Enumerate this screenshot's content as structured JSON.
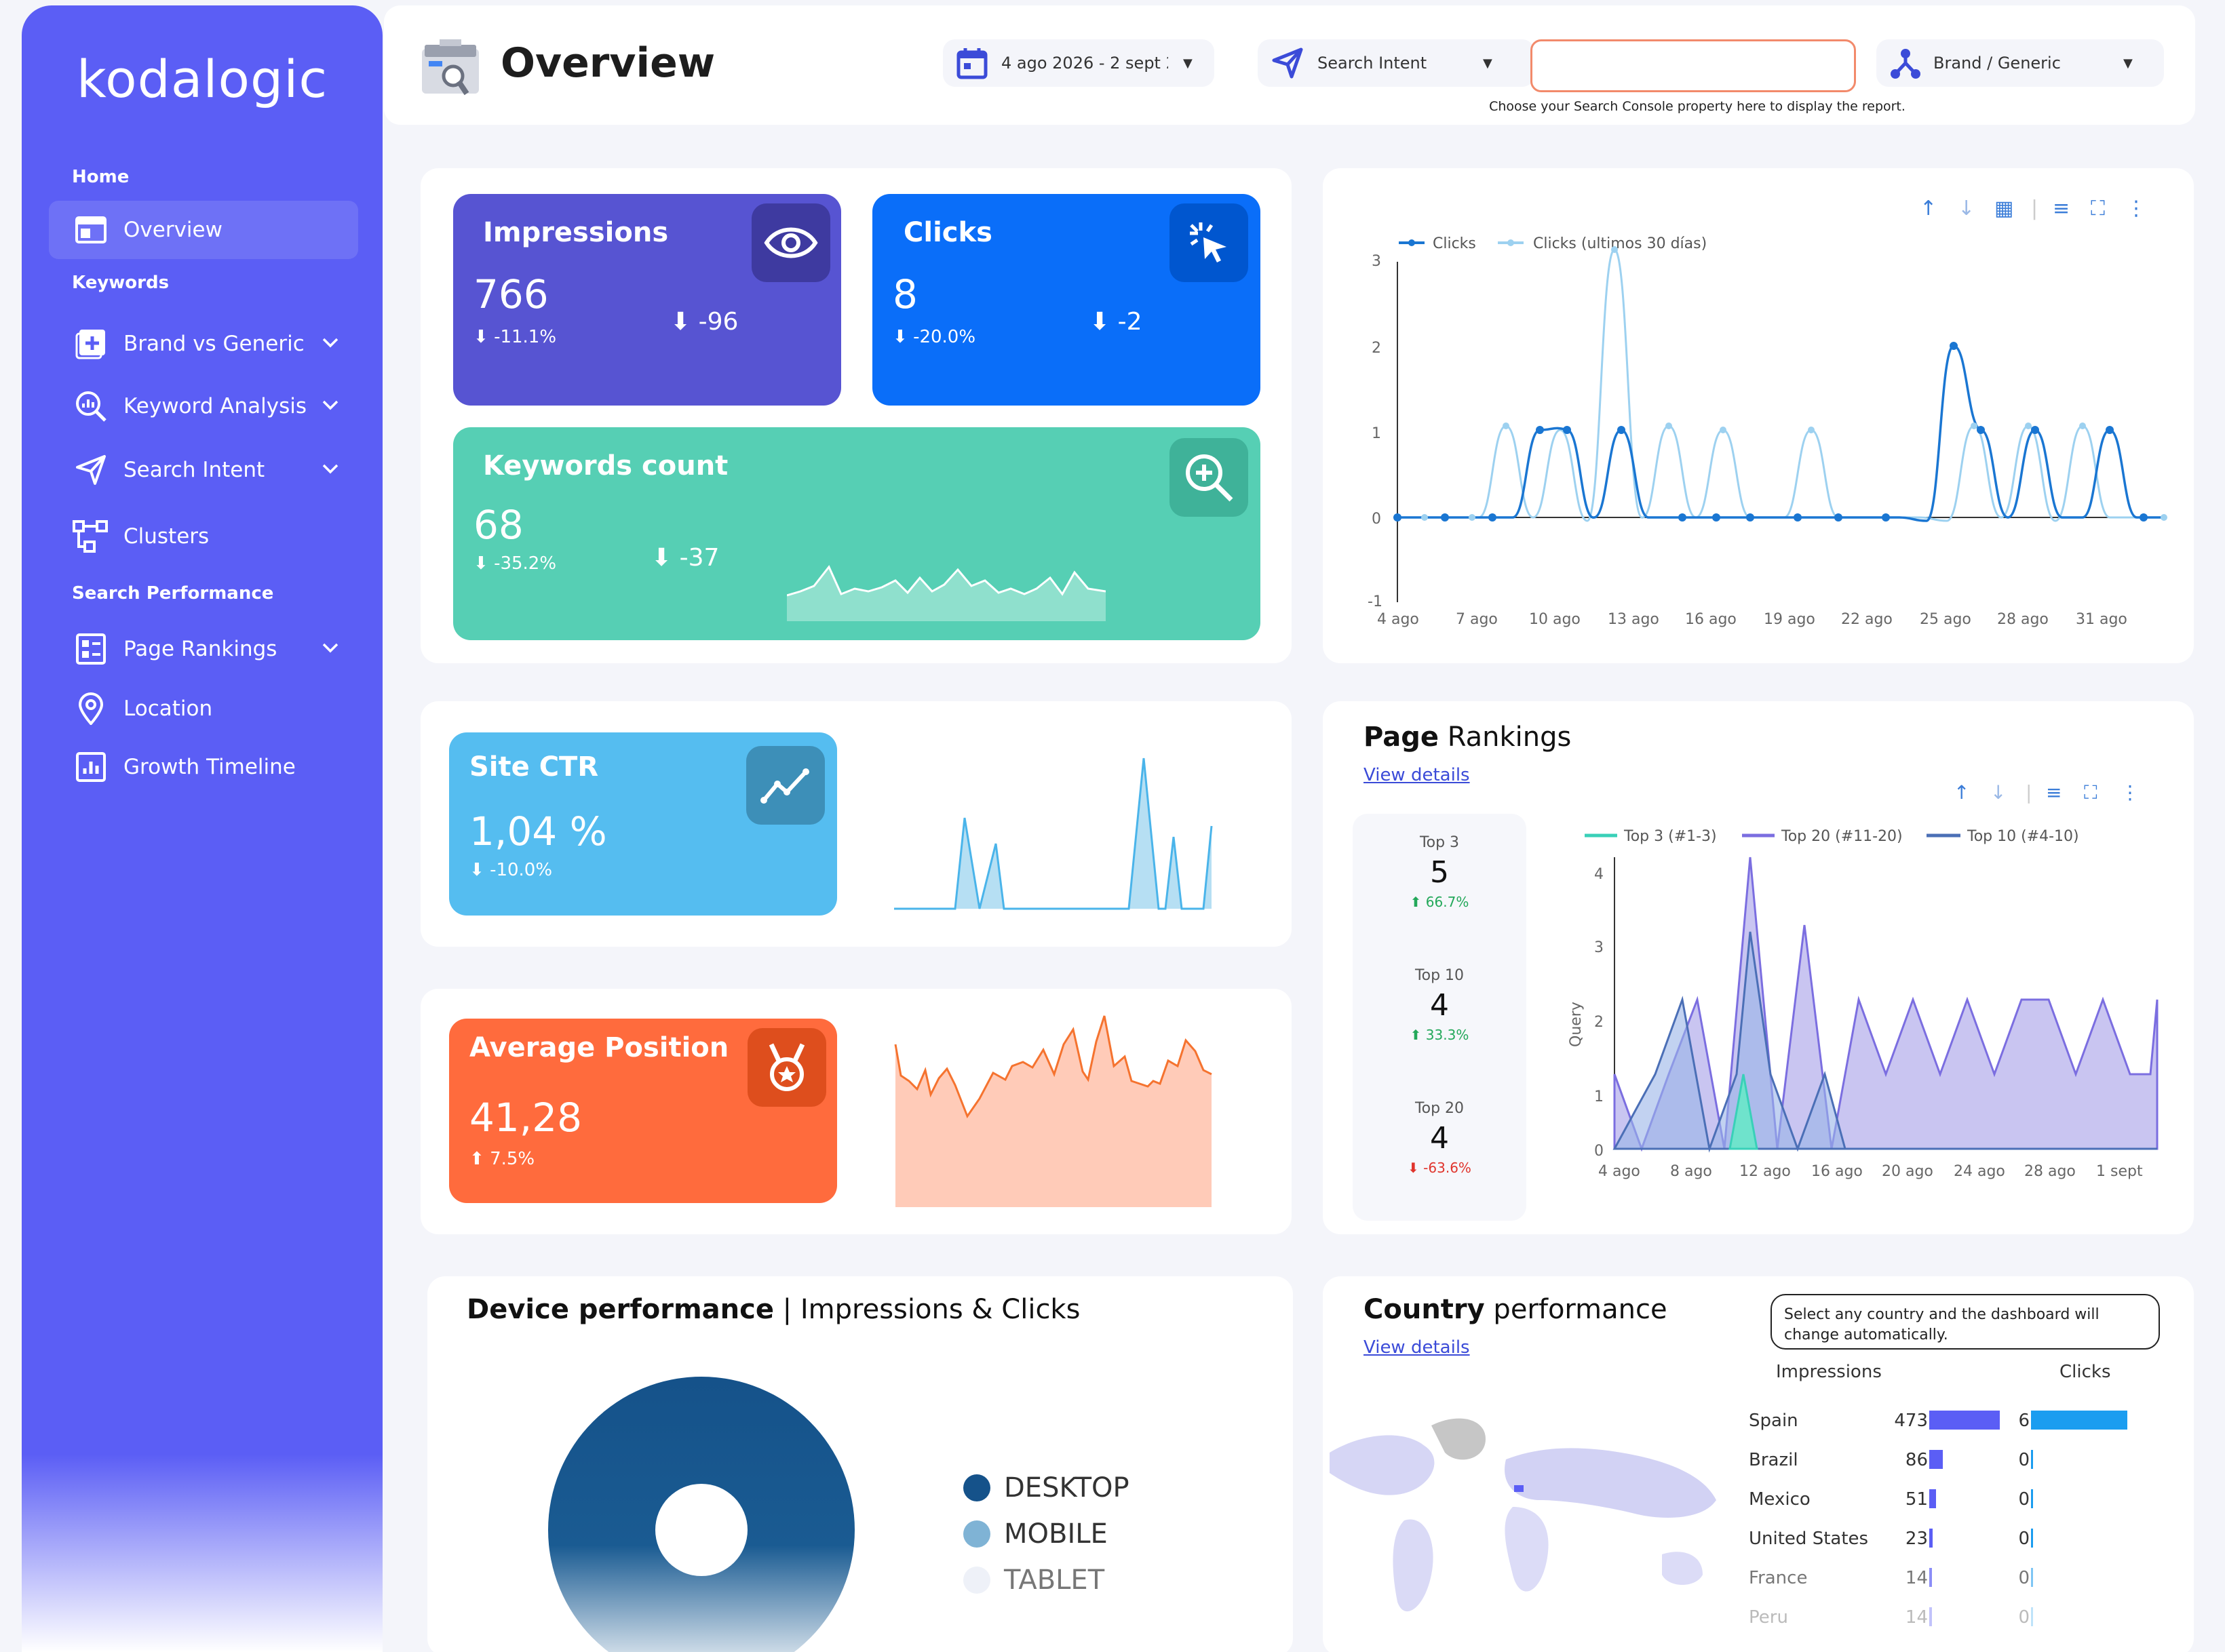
{
  "brand": {
    "logo_text": "kodalogic"
  },
  "sidebar": {
    "sections": [
      {
        "label": "Home"
      },
      {
        "label": "Keywords"
      },
      {
        "label": "Search Performance"
      }
    ],
    "items": [
      {
        "label": "Overview",
        "icon": "layout-icon"
      },
      {
        "label": "Brand vs Generic",
        "icon": "plus-square-icon"
      },
      {
        "label": "Keyword Analysis",
        "icon": "magnify-chart-icon"
      },
      {
        "label": "Search Intent",
        "icon": "send-icon"
      },
      {
        "label": "Clusters",
        "icon": "clusters-icon"
      },
      {
        "label": "Page Rankings",
        "icon": "page-icon"
      },
      {
        "label": "Location",
        "icon": "location-pin-icon"
      },
      {
        "label": "Growth Timeline",
        "icon": "bar-chart-icon"
      }
    ]
  },
  "header": {
    "title": "Overview",
    "date_range": "4 ago 2026 - 2 sept 2",
    "search_intent": "Search Intent",
    "property_input": "",
    "property_hint": "Choose your Search Console property here to display the report.",
    "brand_generic": "Brand / Generic"
  },
  "kpis": {
    "impressions": {
      "title": "Impressions",
      "value": "766",
      "delta_pct": "-11.1%",
      "delta_abs": "-96"
    },
    "clicks": {
      "title": "Clicks",
      "value": "8",
      "delta_pct": "-20.0%",
      "delta_abs": "-2"
    },
    "keywords": {
      "title": "Keywords count",
      "value": "68",
      "delta_pct": "-35.2%",
      "delta_abs": "-37"
    },
    "ctr": {
      "title": "Site CTR",
      "value": "1,04 %",
      "delta_pct": "-10.0%"
    },
    "avg_position": {
      "title": "Average Position",
      "value": "41,28",
      "delta_pct": "7.5%"
    }
  },
  "clicks_chart": {
    "type": "line",
    "series_names": [
      "Clicks",
      "Clicks (ultimos 30 días)"
    ],
    "y_ticks": [
      "3",
      "2",
      "1",
      "0",
      "-1"
    ],
    "x_ticks": [
      "4 ago",
      "7 ago",
      "10 ago",
      "13 ago",
      "16 ago",
      "19 ago",
      "22 ago",
      "25 ago",
      "28 ago",
      "31 ago"
    ]
  },
  "page_rankings": {
    "title_bold": "Page",
    "title_rest": " Rankings",
    "link": "View details",
    "stats": [
      {
        "label": "Top 3",
        "value": "5",
        "delta": "66.7%"
      },
      {
        "label": "Top 10",
        "value": "4",
        "delta": "33.3%"
      },
      {
        "label": "Top 20",
        "value": "4",
        "delta": "-63.6%"
      }
    ],
    "legend": [
      "Top 3 (#1-3)",
      "Top 20 (#11-20)",
      "Top 10 (#4-10)"
    ],
    "y_label": "Query",
    "y_ticks": [
      "4",
      "3",
      "2",
      "1",
      "0"
    ],
    "x_ticks": [
      "4 ago",
      "8 ago",
      "12 ago",
      "16 ago",
      "20 ago",
      "24 ago",
      "28 ago",
      "1 sept"
    ]
  },
  "device": {
    "title_bold": "Device performance",
    "title_rest": " | Impressions & Clicks",
    "legend": [
      "DESKTOP",
      "MOBILE",
      "TABLET"
    ],
    "colors": [
      "#15528a",
      "#7fb3d5",
      "#eef1f8"
    ]
  },
  "country": {
    "title_bold": "Country",
    "title_rest": " performance",
    "link": "View details",
    "note": "Select any country and the dashboard will change automatically.",
    "col_impressions": "Impressions",
    "col_clicks": "Clicks",
    "rows": [
      {
        "name": "Spain",
        "impressions": 473,
        "clicks": 6
      },
      {
        "name": "Brazil",
        "impressions": 86,
        "clicks": 0
      },
      {
        "name": "Mexico",
        "impressions": 51,
        "clicks": 0
      },
      {
        "name": "United States",
        "impressions": 23,
        "clicks": 0
      },
      {
        "name": "France",
        "impressions": 14,
        "clicks": 0
      },
      {
        "name": "Peru",
        "impressions": 14,
        "clicks": 0
      }
    ]
  },
  "chart_data": [
    {
      "type": "line",
      "series": [
        {
          "name": "Clicks",
          "values": [
            0,
            0,
            0,
            0,
            0,
            0,
            1,
            1,
            0,
            0,
            0,
            0,
            0,
            0,
            0,
            0,
            0,
            0,
            0,
            0,
            0,
            0,
            0,
            0,
            0,
            0,
            0,
            0,
            0,
            0,
            0,
            0,
            0,
            0,
            0,
            0,
            0,
            0,
            0,
            0,
            0,
            0,
            0,
            0,
            0,
            0,
            0,
            0,
            0,
            0,
            0,
            0,
            0,
            0,
            0,
            0,
            0,
            0,
            0,
            0
          ]
        },
        {
          "name": "Clicks (ultimos 30 días)",
          "values": [
            0,
            0,
            0,
            0,
            0,
            0,
            0,
            0,
            0,
            0,
            0,
            0,
            0,
            0,
            0,
            0,
            0,
            0,
            0,
            0,
            0,
            0,
            0,
            0,
            0,
            0,
            0,
            0,
            0,
            0,
            0,
            0,
            0,
            0,
            0,
            0,
            0,
            0,
            0,
            0,
            0,
            0,
            0,
            0,
            0,
            0,
            0,
            0,
            0,
            0,
            0,
            0,
            0,
            0,
            0,
            0,
            0,
            0,
            0,
            0
          ]
        }
      ],
      "ylim": [
        -1,
        3
      ]
    }
  ]
}
